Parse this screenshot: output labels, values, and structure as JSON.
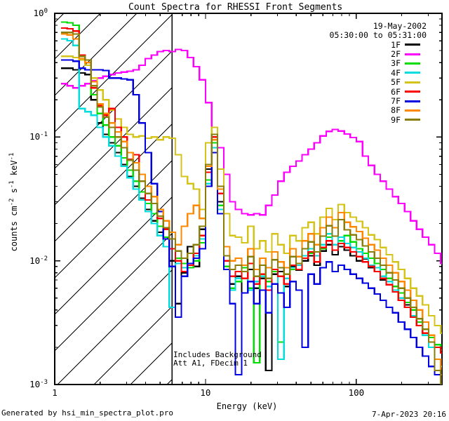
{
  "title": "Count Spectra for RHESSI Front Segments",
  "header": {
    "date": "19-May-2002",
    "time_range": "05:30:00 to 05:31:00"
  },
  "annotations": {
    "line1": "Includes Background",
    "line2": "Att A1, FDecim 1"
  },
  "footer": {
    "left": "Generated by hsi_min_spectra_plot.pro",
    "right": "7-Apr-2023 20:16"
  },
  "colors": {
    "axis": "#000000",
    "background": "#ffffff",
    "hatch": "#000000"
  },
  "chart_data": {
    "type": "line",
    "x_scale": "log",
    "y_scale": "log",
    "xlabel": "Energy (keV)",
    "ylabel_segments": [
      {
        "t": "counts cm",
        "sup": false
      },
      {
        "t": "-2",
        "sup": true
      },
      {
        "t": " s",
        "sup": false
      },
      {
        "t": "-1",
        "sup": true
      },
      {
        "t": " keV",
        "sup": false
      },
      {
        "t": "-1",
        "sup": true
      }
    ],
    "xlim": [
      1,
      370
    ],
    "ylim": [
      0.001,
      1
    ],
    "x_major_ticks": [
      {
        "value": 1,
        "label": "1"
      },
      {
        "value": 10,
        "label": "10"
      },
      {
        "value": 100,
        "label": "100"
      }
    ],
    "y_major_ticks": [
      {
        "value": 1,
        "exp": "0"
      },
      {
        "value": 0.1,
        "exp": "-1"
      },
      {
        "value": 0.01,
        "exp": "-2"
      },
      {
        "value": 0.001,
        "exp": "-3"
      }
    ],
    "hatched_region": {
      "x_from": 1,
      "x_to": 6
    },
    "vertical_line_kev": 6,
    "x": [
      1.1,
      1.21,
      1.32,
      1.45,
      1.59,
      1.74,
      1.91,
      2.09,
      2.29,
      2.51,
      2.76,
      3.02,
      3.31,
      3.63,
      3.98,
      4.37,
      4.79,
      5.25,
      5.75,
      6.31,
      6.92,
      7.59,
      8.32,
      9.12,
      10.0,
      11.0,
      12.0,
      13.2,
      14.5,
      15.8,
      17.4,
      19.1,
      20.9,
      22.9,
      25.1,
      27.5,
      30.2,
      33.1,
      36.3,
      39.8,
      43.7,
      47.9,
      52.5,
      57.5,
      63.1,
      69.2,
      75.9,
      83.2,
      91.2,
      100,
      110,
      120,
      132,
      144,
      158,
      174,
      190,
      209,
      229,
      251,
      275,
      302,
      331,
      363
    ],
    "series": [
      {
        "name": "1F",
        "color": "#000000",
        "values": [
          0.36,
          0.36,
          0.35,
          0.33,
          0.32,
          0.2,
          0.13,
          0.105,
          0.09,
          0.075,
          0.06,
          0.048,
          0.04,
          0.032,
          0.026,
          0.021,
          0.017,
          0.013,
          0.01,
          0.0045,
          0.008,
          0.013,
          0.009,
          0.018,
          0.055,
          0.095,
          0.03,
          0.009,
          0.0065,
          0.0075,
          0.0055,
          0.0085,
          0.006,
          0.0072,
          0.0013,
          0.0078,
          0.0082,
          0.0062,
          0.009,
          0.0084,
          0.01,
          0.011,
          0.0092,
          0.012,
          0.0135,
          0.0112,
          0.013,
          0.0122,
          0.011,
          0.01,
          0.0104,
          0.0088,
          0.0082,
          0.007,
          0.0064,
          0.0058,
          0.005,
          0.0044,
          0.0036,
          0.003,
          0.0028,
          0.0022,
          0.002,
          0.0018
        ]
      },
      {
        "name": "2F",
        "color": "#ff00ff",
        "values": [
          0.27,
          0.26,
          0.25,
          0.26,
          0.27,
          0.285,
          0.3,
          0.31,
          0.32,
          0.33,
          0.335,
          0.34,
          0.35,
          0.38,
          0.43,
          0.46,
          0.49,
          0.5,
          0.49,
          0.51,
          0.5,
          0.44,
          0.37,
          0.29,
          0.19,
          0.105,
          0.082,
          0.05,
          0.03,
          0.026,
          0.024,
          0.0235,
          0.024,
          0.0235,
          0.028,
          0.034,
          0.044,
          0.052,
          0.058,
          0.064,
          0.072,
          0.08,
          0.09,
          0.102,
          0.111,
          0.115,
          0.112,
          0.106,
          0.099,
          0.092,
          0.07,
          0.059,
          0.05,
          0.044,
          0.038,
          0.033,
          0.029,
          0.025,
          0.021,
          0.018,
          0.0155,
          0.0135,
          0.0115,
          0.0095
        ]
      },
      {
        "name": "3F",
        "color": "#00dd00",
        "values": [
          0.85,
          0.84,
          0.8,
          0.45,
          0.4,
          0.22,
          0.155,
          0.125,
          0.1,
          0.085,
          0.068,
          0.054,
          0.044,
          0.036,
          0.029,
          0.024,
          0.019,
          0.0155,
          0.0125,
          0.0105,
          0.0095,
          0.0088,
          0.01,
          0.014,
          0.045,
          0.09,
          0.028,
          0.009,
          0.006,
          0.0068,
          0.0088,
          0.006,
          0.0015,
          0.0075,
          0.0068,
          0.0082,
          0.0022,
          0.0078,
          0.0085,
          0.0095,
          0.0105,
          0.0115,
          0.0135,
          0.0125,
          0.0155,
          0.0185,
          0.0145,
          0.016,
          0.0142,
          0.0125,
          0.0115,
          0.0105,
          0.0095,
          0.0085,
          0.0072,
          0.0062,
          0.0055,
          0.0046,
          0.004,
          0.0032,
          0.0028,
          0.0024,
          0.0021,
          0.0019
        ]
      },
      {
        "name": "4F",
        "color": "#00dddd",
        "values": [
          0.62,
          0.6,
          0.55,
          0.17,
          0.16,
          0.15,
          0.12,
          0.1,
          0.085,
          0.07,
          0.058,
          0.047,
          0.038,
          0.031,
          0.025,
          0.02,
          0.016,
          0.013,
          0.0042,
          0.0095,
          0.0088,
          0.0092,
          0.011,
          0.015,
          0.042,
          0.082,
          0.026,
          0.0085,
          0.0058,
          0.0072,
          0.0082,
          0.0058,
          0.0068,
          0.0075,
          0.0062,
          0.0085,
          0.0016,
          0.0072,
          0.0088,
          0.0092,
          0.011,
          0.0125,
          0.011,
          0.0135,
          0.0165,
          0.0135,
          0.0155,
          0.0138,
          0.0128,
          0.0118,
          0.0105,
          0.0092,
          0.0088,
          0.0075,
          0.0068,
          0.0058,
          0.005,
          0.0042,
          0.0036,
          0.003,
          0.0025,
          0.002,
          0.0016,
          0.0014
        ]
      },
      {
        "name": "5F",
        "color": "#d4c41a",
        "values": [
          0.45,
          0.45,
          0.44,
          0.42,
          0.38,
          0.3,
          0.24,
          0.2,
          0.165,
          0.14,
          0.12,
          0.105,
          0.1,
          0.102,
          0.098,
          0.1,
          0.095,
          0.1,
          0.098,
          0.072,
          0.048,
          0.042,
          0.038,
          0.026,
          0.09,
          0.12,
          0.055,
          0.024,
          0.016,
          0.0155,
          0.014,
          0.019,
          0.0125,
          0.0145,
          0.0118,
          0.0165,
          0.0135,
          0.0115,
          0.016,
          0.0145,
          0.0185,
          0.0205,
          0.0165,
          0.0225,
          0.0265,
          0.0215,
          0.0285,
          0.0245,
          0.0225,
          0.0208,
          0.0185,
          0.0162,
          0.0148,
          0.0128,
          0.0112,
          0.0098,
          0.0085,
          0.0072,
          0.006,
          0.0052,
          0.0044,
          0.0036,
          0.003,
          0.0026
        ]
      },
      {
        "name": "6F",
        "color": "#ff0000",
        "values": [
          0.76,
          0.75,
          0.72,
          0.46,
          0.42,
          0.25,
          0.18,
          0.15,
          0.17,
          0.12,
          0.1,
          0.066,
          0.072,
          0.05,
          0.031,
          0.033,
          0.022,
          0.018,
          0.0125,
          0.01,
          0.0082,
          0.0092,
          0.0115,
          0.016,
          0.052,
          0.1,
          0.035,
          0.01,
          0.0075,
          0.0082,
          0.0072,
          0.0095,
          0.0065,
          0.0078,
          0.0058,
          0.0085,
          0.0075,
          0.0065,
          0.0092,
          0.0085,
          0.0105,
          0.0118,
          0.0098,
          0.0128,
          0.0145,
          0.0122,
          0.0138,
          0.0128,
          0.0118,
          0.0108,
          0.0098,
          0.009,
          0.0082,
          0.0072,
          0.0064,
          0.0056,
          0.0048,
          0.0042,
          0.0035,
          0.003,
          0.0026,
          0.0022,
          0.002,
          0.0018
        ]
      },
      {
        "name": "7F",
        "color": "#0000e0",
        "values": [
          0.42,
          0.42,
          0.41,
          0.36,
          0.35,
          0.35,
          0.35,
          0.345,
          0.3,
          0.3,
          0.295,
          0.29,
          0.22,
          0.13,
          0.075,
          0.042,
          0.025,
          0.015,
          0.009,
          0.0035,
          0.0075,
          0.0095,
          0.0105,
          0.0125,
          0.04,
          0.075,
          0.024,
          0.0085,
          0.0045,
          0.0012,
          0.0055,
          0.0068,
          0.0045,
          0.0058,
          0.0038,
          0.0065,
          0.0055,
          0.0042,
          0.0068,
          0.0058,
          0.002,
          0.0078,
          0.0065,
          0.0088,
          0.0098,
          0.0082,
          0.0092,
          0.0085,
          0.0078,
          0.0072,
          0.0066,
          0.006,
          0.0054,
          0.0048,
          0.0042,
          0.0038,
          0.0032,
          0.0028,
          0.0024,
          0.002,
          0.0017,
          0.0014,
          0.0012,
          0.0011
        ]
      },
      {
        "name": "8F",
        "color": "#ff8800",
        "values": [
          0.68,
          0.67,
          0.62,
          0.43,
          0.4,
          0.28,
          0.185,
          0.155,
          0.13,
          0.11,
          0.092,
          0.075,
          0.062,
          0.05,
          0.04,
          0.033,
          0.026,
          0.021,
          0.017,
          0.0135,
          0.019,
          0.024,
          0.028,
          0.022,
          0.058,
          0.095,
          0.038,
          0.013,
          0.01,
          0.0105,
          0.0092,
          0.0125,
          0.0085,
          0.0105,
          0.0088,
          0.0118,
          0.0098,
          0.0088,
          0.0125,
          0.0108,
          0.0145,
          0.0165,
          0.0135,
          0.0185,
          0.0225,
          0.0185,
          0.0245,
          0.0205,
          0.0188,
          0.0172,
          0.0152,
          0.0135,
          0.0122,
          0.0105,
          0.0092,
          0.008,
          0.0068,
          0.0058,
          0.0048,
          0.004,
          0.0032,
          0.0025,
          0.0016,
          0.0012
        ]
      },
      {
        "name": "9F",
        "color": "#8b7d0a",
        "values": [
          0.7,
          0.7,
          0.68,
          0.45,
          0.42,
          0.26,
          0.175,
          0.145,
          0.12,
          0.1,
          0.082,
          0.065,
          0.054,
          0.044,
          0.035,
          0.029,
          0.023,
          0.0185,
          0.015,
          0.012,
          0.0105,
          0.0115,
          0.0135,
          0.019,
          0.06,
          0.105,
          0.04,
          0.011,
          0.0085,
          0.0092,
          0.0082,
          0.0108,
          0.0075,
          0.0092,
          0.0072,
          0.0102,
          0.0088,
          0.0078,
          0.0108,
          0.0095,
          0.0125,
          0.0142,
          0.0118,
          0.0158,
          0.0192,
          0.0158,
          0.0215,
          0.0178,
          0.0162,
          0.0148,
          0.0132,
          0.0118,
          0.0105,
          0.0092,
          0.008,
          0.007,
          0.006,
          0.005,
          0.0042,
          0.0034,
          0.0028,
          0.0022,
          0.0013,
          0.001
        ]
      }
    ]
  }
}
